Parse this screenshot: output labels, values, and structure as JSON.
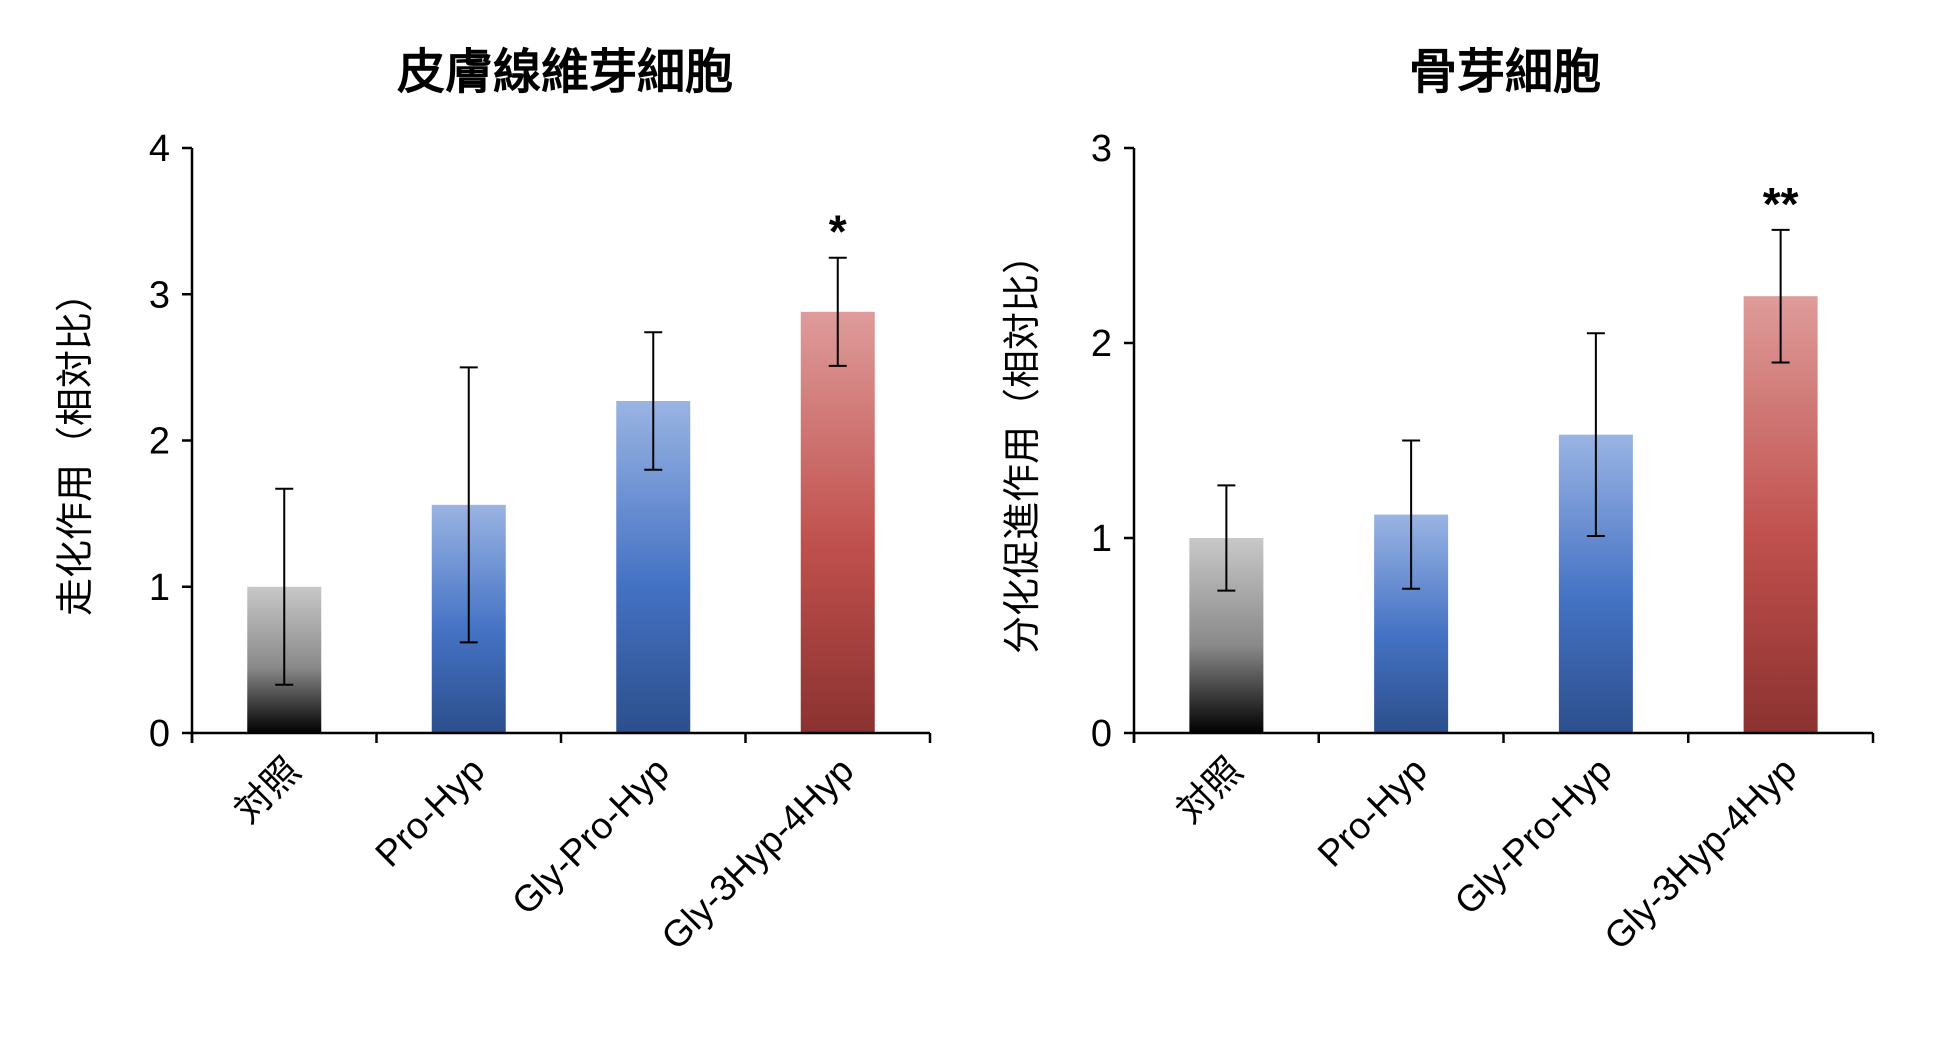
{
  "chart_data": [
    {
      "type": "bar",
      "title": "皮膚線維芽細胞",
      "xlabel": "",
      "ylabel": "走化作用（相対比）",
      "ylim": [
        0,
        4
      ],
      "yticks": [
        "0",
        "1",
        "2",
        "3",
        "4"
      ],
      "categories": [
        "対照",
        "Pro-Hyp",
        "Gly-Pro-Hyp",
        "Gly-3Hyp-4Hyp"
      ],
      "values": [
        1.0,
        1.56,
        2.27,
        2.88
      ],
      "errors": [
        0.67,
        0.94,
        0.47,
        0.37
      ],
      "significance": [
        "",
        "",
        "",
        "*"
      ],
      "colors": [
        "#8f8f8f",
        "#4472c4",
        "#4472c4",
        "#c0504d"
      ],
      "grid": false,
      "legend": "none"
    },
    {
      "type": "bar",
      "title": "骨芽細胞",
      "xlabel": "",
      "ylabel": "分化促進作用（相対比）",
      "ylim": [
        0,
        3
      ],
      "yticks": [
        "0",
        "1",
        "2",
        "3"
      ],
      "categories": [
        "対照",
        "Pro-Hyp",
        "Gly-Pro-Hyp",
        "Gly-3Hyp-4Hyp"
      ],
      "values": [
        1.0,
        1.12,
        1.53,
        2.24
      ],
      "errors": [
        0.27,
        0.38,
        0.52,
        0.34
      ],
      "significance": [
        "",
        "",
        "",
        "**"
      ],
      "colors": [
        "#8f8f8f",
        "#4472c4",
        "#4472c4",
        "#c0504d"
      ],
      "grid": false,
      "legend": "none"
    }
  ]
}
